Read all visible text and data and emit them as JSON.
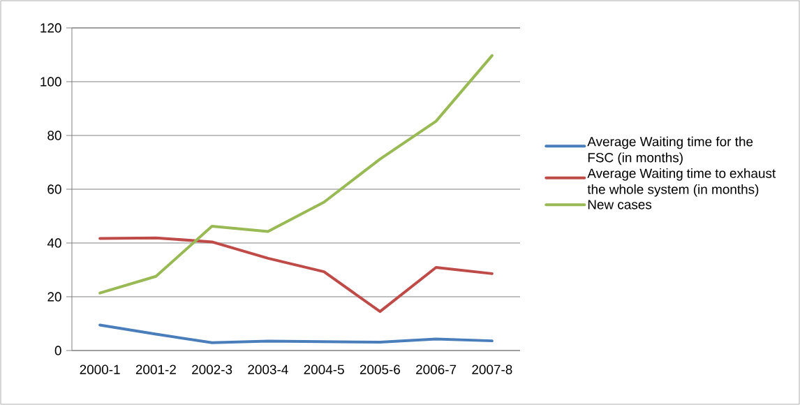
{
  "chart_data": {
    "type": "line",
    "categories": [
      "2000-1",
      "2001-2",
      "2002-3",
      "2003-4",
      "2004-5",
      "2005-6",
      "2006-7",
      "2007-8"
    ],
    "series": [
      {
        "name": "Average Waiting time for the FSC (in months)",
        "color": "#4a7ebb",
        "values": [
          9.5,
          6.1,
          2.9,
          3.5,
          3.3,
          3.1,
          4.3,
          3.6
        ]
      },
      {
        "name": "Average Waiting time to exhaust the whole system (in months)",
        "color": "#be4b48",
        "values": [
          41.7,
          41.9,
          40.4,
          34.3,
          29.3,
          14.5,
          30.9,
          28.6
        ]
      },
      {
        "name": "New cases",
        "color": "#98b954",
        "values": [
          21.4,
          27.6,
          46.2,
          44.3,
          55.2,
          71.2,
          85.3,
          109.7
        ]
      }
    ],
    "ylim": [
      0,
      120
    ],
    "yticks": [
      0,
      20,
      40,
      60,
      80,
      100,
      120
    ],
    "grid": "y",
    "legend": "right",
    "marker": "none",
    "line_style": "solid"
  }
}
